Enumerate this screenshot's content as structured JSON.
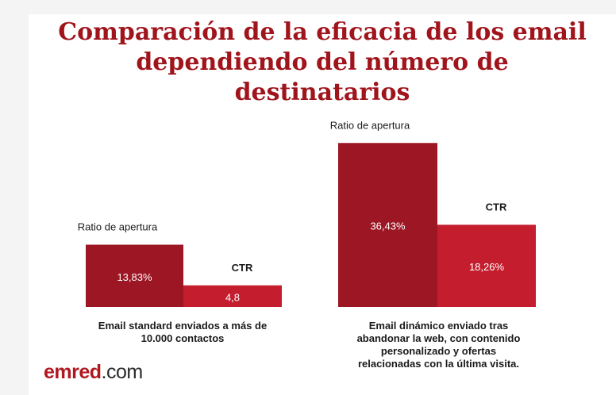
{
  "title": {
    "lines": [
      "Comparación de la eficacia de los email",
      "dependiendo del número de",
      "destinatarios"
    ]
  },
  "colors": {
    "title": "#a0141c",
    "ratio_bar": "#9c1624",
    "ctr_bar": "#c41e2e"
  },
  "chart_data": [
    {
      "type": "bar",
      "title": "Email standard enviados a más de 10.000 contactos",
      "series": [
        {
          "name": "Ratio de apertura",
          "value": 13.83,
          "label": "13,83%"
        },
        {
          "name": "CTR",
          "value": 4.8,
          "label": "4,8"
        }
      ],
      "ylim": [
        0,
        40
      ]
    },
    {
      "type": "bar",
      "title": "Email dinámico enviado tras abandonar la web, con contenido personalizado y ofertas relacionadas con la última visita.",
      "series": [
        {
          "name": "Ratio de apertura",
          "value": 36.43,
          "label": "36,43%"
        },
        {
          "name": "CTR",
          "value": 18.26,
          "label": "18,26%"
        }
      ],
      "ylim": [
        0,
        40
      ]
    }
  ],
  "captions": {
    "left": [
      "Email standard enviados a más de",
      "10.000 contactos"
    ],
    "right": [
      "Email dinámico enviado tras",
      "abandonar la web,  con contenido",
      "personalizado y ofertas",
      "relacionadas con la última visita."
    ]
  },
  "logo": {
    "brand": "emred",
    "tld": ".com"
  }
}
